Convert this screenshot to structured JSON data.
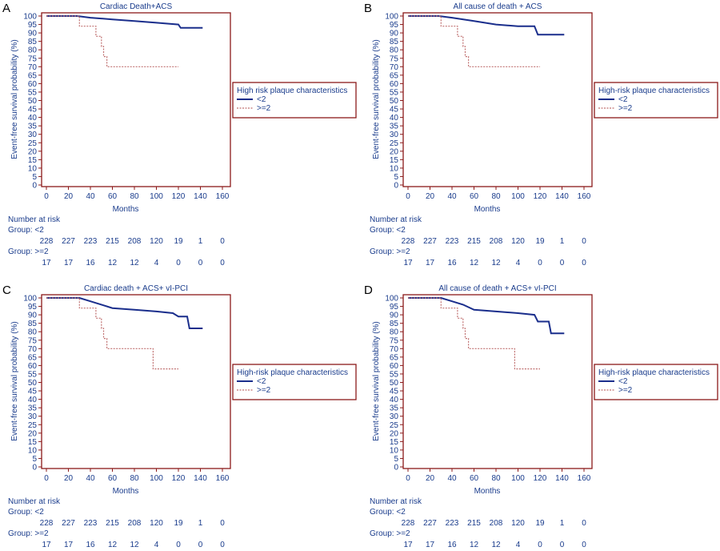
{
  "x_label": "Months",
  "y_label": "Event-free survival probability (%)",
  "x_ticks": [
    0,
    20,
    40,
    60,
    80,
    100,
    120,
    140,
    160
  ],
  "y_ticks": [
    0,
    5,
    10,
    15,
    20,
    25,
    30,
    35,
    40,
    45,
    50,
    55,
    60,
    65,
    70,
    75,
    80,
    85,
    90,
    95,
    100
  ],
  "colors": {
    "frame": "#8b1a1a",
    "text": "#1a3c8c",
    "low_risk_line": "#1a2e8c",
    "high_risk_line": "#c07070"
  },
  "risk_table": {
    "header": "Number at risk",
    "group1_label": "Group: <2",
    "group1_values": [
      "228",
      "227",
      "223",
      "215",
      "208",
      "120",
      "19",
      "1",
      "0"
    ],
    "group2_label": "Group: >=2",
    "group2_values": [
      "17",
      "17",
      "16",
      "12",
      "12",
      "4",
      "0",
      "0",
      "0"
    ]
  },
  "chart_data": [
    {
      "type": "line",
      "panel_letter": "A",
      "title": "Cardiac Death+ACS",
      "legend_title": "High risk plaque characteristics",
      "xlabel": "Months",
      "ylabel": "Event-free survival probability (%)",
      "xlim": [
        0,
        160
      ],
      "ylim": [
        0,
        100
      ],
      "grid": false,
      "legend_position": "right",
      "series": [
        {
          "name": "<2",
          "points": [
            [
              0,
              100
            ],
            [
              28,
              100
            ],
            [
              40,
              99
            ],
            [
              60,
              98
            ],
            [
              80,
              97
            ],
            [
              100,
              96
            ],
            [
              120,
              95
            ],
            [
              122,
              93
            ],
            [
              142,
              93
            ]
          ]
        },
        {
          "name": ">=2",
          "points": [
            [
              0,
              100
            ],
            [
              30,
              100
            ],
            [
              30,
              94
            ],
            [
              45,
              94
            ],
            [
              45,
              88
            ],
            [
              50,
              88
            ],
            [
              50,
              82
            ],
            [
              52,
              82
            ],
            [
              52,
              76
            ],
            [
              55,
              76
            ],
            [
              55,
              70
            ],
            [
              120,
              70
            ]
          ]
        }
      ]
    },
    {
      "type": "line",
      "panel_letter": "B",
      "title": "All cause of death + ACS",
      "legend_title": "High-risk plaque characteristics",
      "xlabel": "Months",
      "ylabel": "Event-free survival probability (%)",
      "xlim": [
        0,
        160
      ],
      "ylim": [
        0,
        100
      ],
      "grid": false,
      "legend_position": "right",
      "series": [
        {
          "name": "<2",
          "points": [
            [
              0,
              100
            ],
            [
              28,
              100
            ],
            [
              40,
              99
            ],
            [
              60,
              97
            ],
            [
              80,
              95
            ],
            [
              100,
              94
            ],
            [
              115,
              94
            ],
            [
              118,
              89
            ],
            [
              142,
              89
            ]
          ]
        },
        {
          "name": ">=2",
          "points": [
            [
              0,
              100
            ],
            [
              30,
              100
            ],
            [
              30,
              94
            ],
            [
              45,
              94
            ],
            [
              45,
              88
            ],
            [
              50,
              88
            ],
            [
              50,
              82
            ],
            [
              52,
              82
            ],
            [
              52,
              76
            ],
            [
              55,
              76
            ],
            [
              55,
              70
            ],
            [
              120,
              70
            ]
          ]
        }
      ]
    },
    {
      "type": "line",
      "panel_letter": "C",
      "title": "Cardiac death + ACS+ vI-PCI",
      "legend_title": "High-risk plaque characteristics",
      "xlabel": "Months",
      "ylabel": "Event-free survival probability (%)",
      "xlim": [
        0,
        160
      ],
      "ylim": [
        0,
        100
      ],
      "grid": false,
      "legend_position": "right",
      "series": [
        {
          "name": "<2",
          "points": [
            [
              0,
              100
            ],
            [
              30,
              100
            ],
            [
              40,
              98
            ],
            [
              50,
              96
            ],
            [
              60,
              94
            ],
            [
              80,
              93
            ],
            [
              100,
              92
            ],
            [
              115,
              91
            ],
            [
              120,
              89
            ],
            [
              128,
              89
            ],
            [
              130,
              82
            ],
            [
              142,
              82
            ]
          ]
        },
        {
          "name": ">=2",
          "points": [
            [
              0,
              100
            ],
            [
              30,
              100
            ],
            [
              30,
              94
            ],
            [
              45,
              94
            ],
            [
              45,
              88
            ],
            [
              50,
              88
            ],
            [
              50,
              82
            ],
            [
              52,
              82
            ],
            [
              52,
              76
            ],
            [
              55,
              76
            ],
            [
              55,
              70
            ],
            [
              97,
              70
            ],
            [
              97,
              58
            ],
            [
              120,
              58
            ]
          ]
        }
      ]
    },
    {
      "type": "line",
      "panel_letter": "D",
      "title": "All cause of death + ACS+ vI-PCI",
      "legend_title": "High-risk plaque characteristics",
      "xlabel": "Months",
      "ylabel": "Event-free survival probability (%)",
      "xlim": [
        0,
        160
      ],
      "ylim": [
        0,
        100
      ],
      "grid": false,
      "legend_position": "right",
      "series": [
        {
          "name": "<2",
          "points": [
            [
              0,
              100
            ],
            [
              30,
              100
            ],
            [
              40,
              98
            ],
            [
              50,
              96
            ],
            [
              60,
              93
            ],
            [
              80,
              92
            ],
            [
              100,
              91
            ],
            [
              115,
              90
            ],
            [
              118,
              86
            ],
            [
              128,
              86
            ],
            [
              130,
              79
            ],
            [
              142,
              79
            ]
          ]
        },
        {
          "name": ">=2",
          "points": [
            [
              0,
              100
            ],
            [
              30,
              100
            ],
            [
              30,
              94
            ],
            [
              45,
              94
            ],
            [
              45,
              88
            ],
            [
              50,
              88
            ],
            [
              50,
              82
            ],
            [
              52,
              82
            ],
            [
              52,
              76
            ],
            [
              55,
              76
            ],
            [
              55,
              70
            ],
            [
              97,
              70
            ],
            [
              97,
              58
            ],
            [
              120,
              58
            ]
          ]
        }
      ]
    }
  ]
}
